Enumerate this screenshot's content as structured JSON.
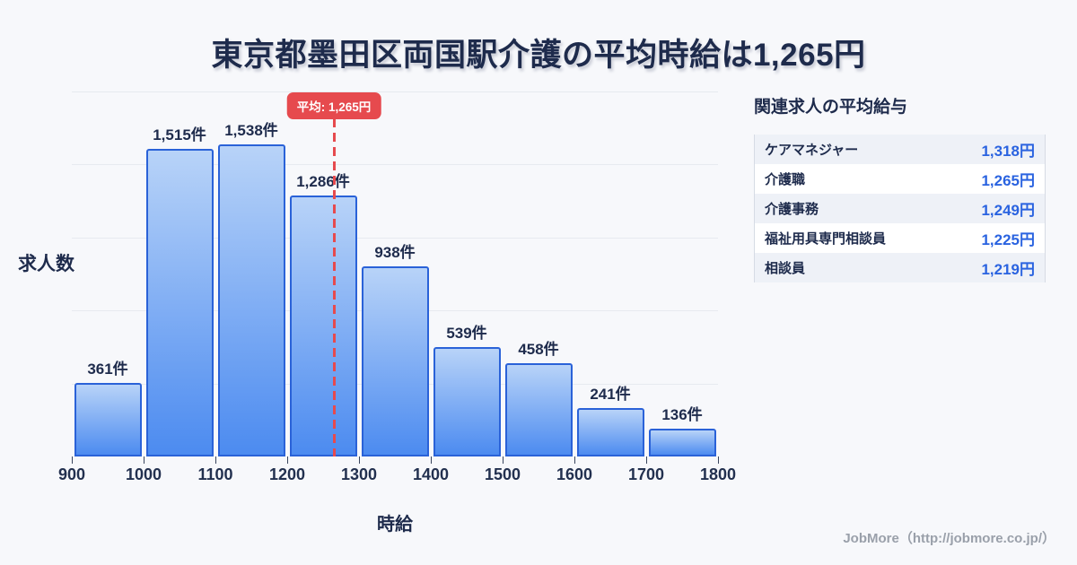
{
  "title": "東京都墨田区両国駅介護の平均時給は1,265円",
  "chart_data": {
    "type": "bar",
    "title": "東京都墨田区両国駅介護の平均時給は1,265円",
    "xlabel": "時給",
    "ylabel": "求人数",
    "x_ticks": [
      900,
      1000,
      1100,
      1200,
      1300,
      1400,
      1500,
      1600,
      1700,
      1800
    ],
    "categories": [
      "900-1000",
      "1000-1100",
      "1100-1200",
      "1200-1300",
      "1300-1400",
      "1400-1500",
      "1500-1600",
      "1600-1700",
      "1700-1800"
    ],
    "values": [
      361,
      1515,
      1538,
      1286,
      938,
      539,
      458,
      241,
      136
    ],
    "labels": [
      "361件",
      "1,515件",
      "1,538件",
      "1,286件",
      "938件",
      "539件",
      "458件",
      "241件",
      "136件"
    ],
    "ylim": [
      0,
      1800
    ],
    "grid": true,
    "gridline_count": 5,
    "average": {
      "value": 1265,
      "badge_label": "平均: 1,265円"
    },
    "legend_position": "none"
  },
  "side_panel": {
    "title": "関連求人の平均給与",
    "rows": [
      {
        "label": "ケアマネジャー",
        "value": "1,318円"
      },
      {
        "label": "介護職",
        "value": "1,265円"
      },
      {
        "label": "介護事務",
        "value": "1,249円"
      },
      {
        "label": "福祉用具専門相談員",
        "value": "1,225円"
      },
      {
        "label": "相談員",
        "value": "1,219円"
      }
    ]
  },
  "footer": {
    "text": "JobMore（http://jobmore.co.jp/）"
  },
  "colors": {
    "background": "#f7f8fb",
    "title_navy": "#1e2b4c",
    "bar_fill_top": "#b8d3f8",
    "bar_fill_bottom": "#4c8bf0",
    "bar_border": "#2a62d8",
    "gridline": "#e7eaf0",
    "average_red": "#e64a4e",
    "value_blue": "#2a63e0",
    "table_alt_row": "#eef1f7",
    "footer_gray": "#9aa0aa"
  }
}
